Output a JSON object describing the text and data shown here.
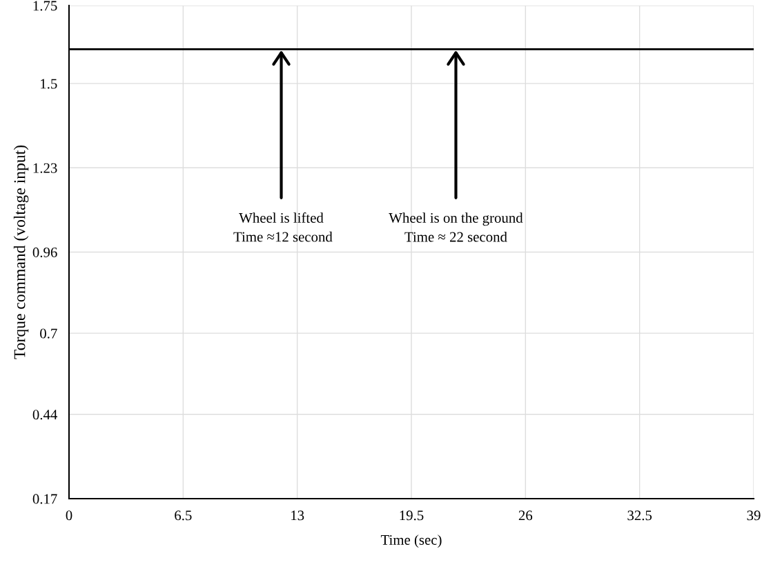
{
  "chart_data": {
    "type": "line",
    "xlabel": "Time (sec)",
    "ylabel": "Torque command (voltage input)",
    "x": [
      0,
      39
    ],
    "series": [
      {
        "color": "#000000",
        "values": [
          1.61,
          1.61
        ]
      }
    ],
    "xlim": [
      0,
      39
    ],
    "xticks": [
      0,
      6.5,
      13,
      19.5,
      26,
      32.5,
      39
    ],
    "ylim": [
      0.17,
      1.75
    ],
    "yticks": [
      0.17,
      0.44,
      0.7,
      0.96,
      1.23,
      1.5,
      1.75
    ],
    "grid": true,
    "marker": "none",
    "line_style": "solid",
    "annotations": [
      "Wheel is lifted\n Time ≈12 second",
      "Wheel is on the ground\nTime ≈ 22 second"
    ]
  }
}
